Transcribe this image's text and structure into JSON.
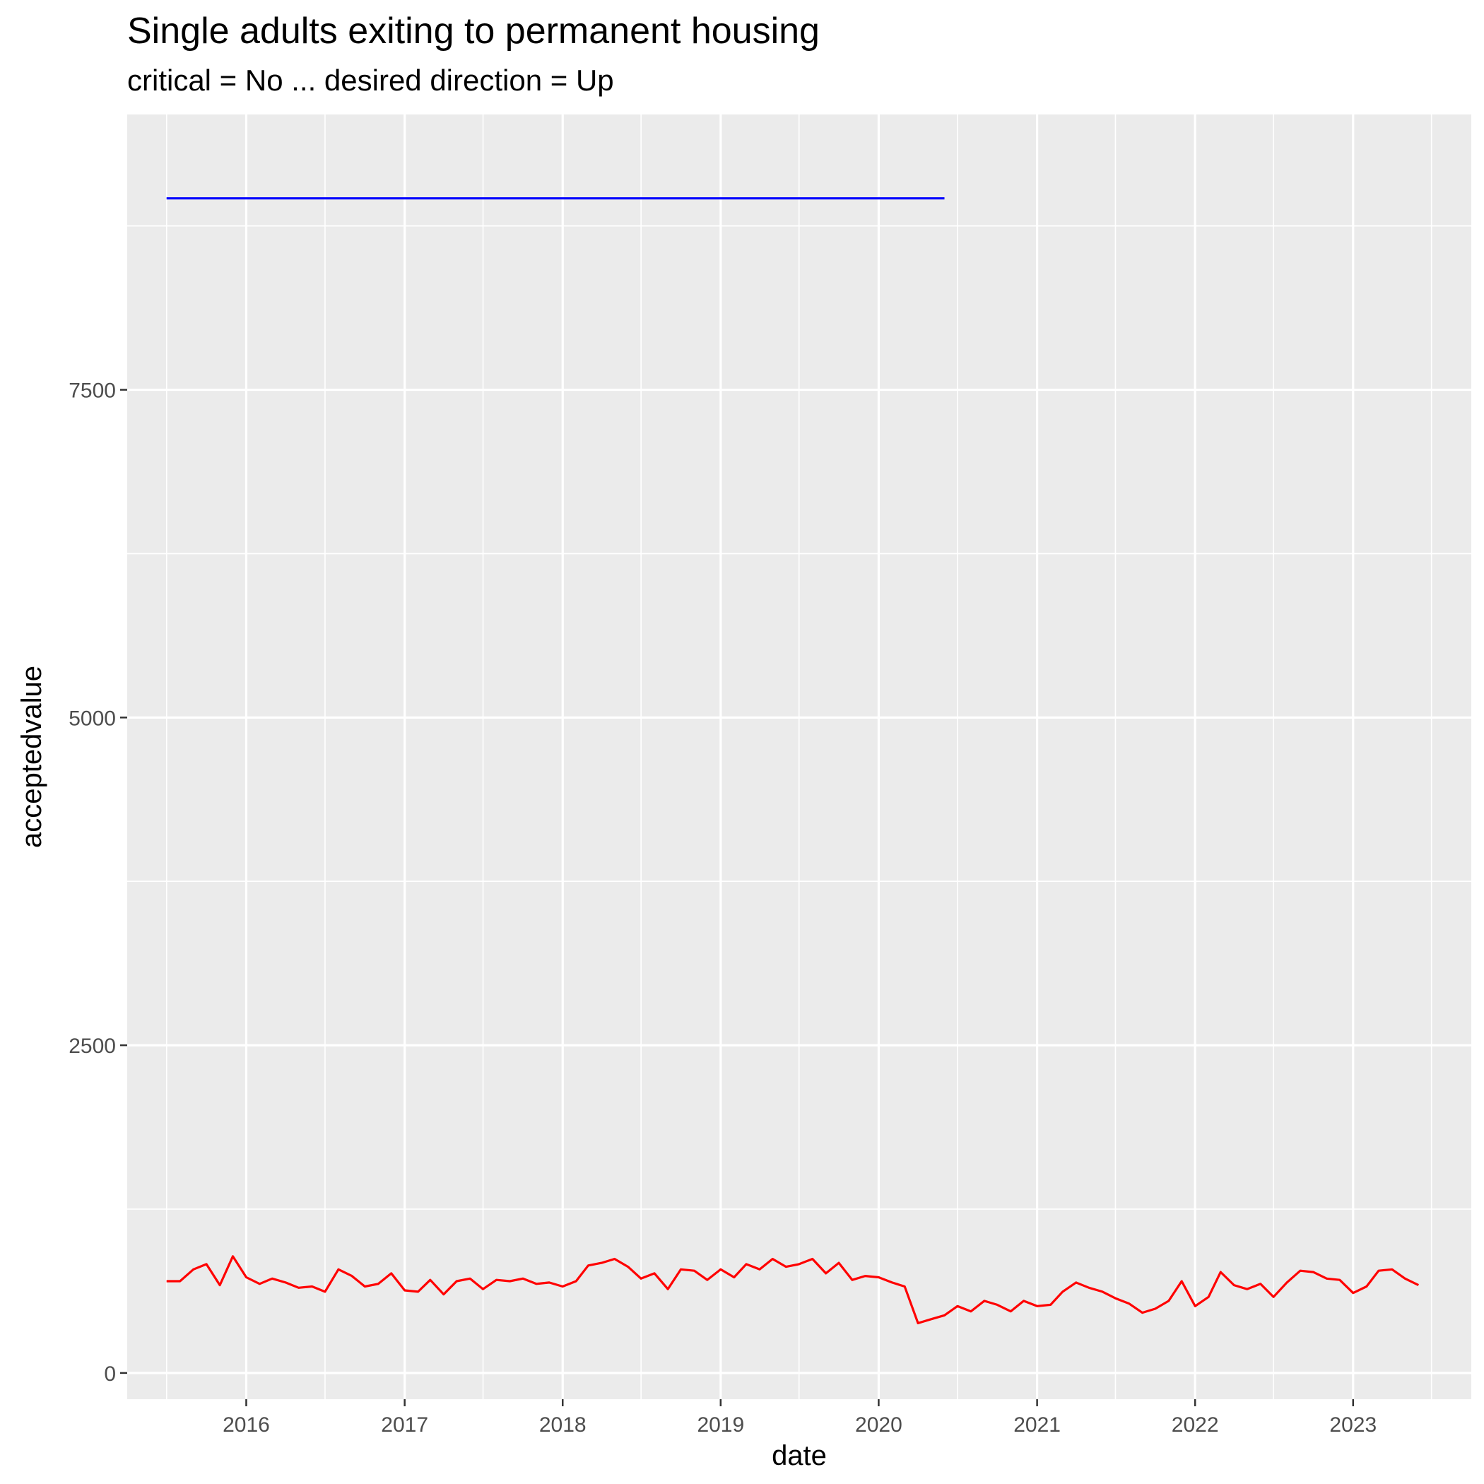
{
  "chart_data": {
    "type": "line",
    "title": "Single adults exiting to permanent housing",
    "subtitle": "critical = No ... desired direction = Up",
    "xlabel": "date",
    "ylabel": "acceptedvalue",
    "x_ticks": [
      "2016",
      "2017",
      "2018",
      "2019",
      "2020",
      "2021",
      "2022",
      "2023"
    ],
    "y_ticks": [
      0,
      2500,
      5000,
      7500
    ],
    "xlim": [
      "2015-04-01",
      "2023-10-01"
    ],
    "ylim": [
      -200,
      9600
    ],
    "grid": true,
    "background": "#ebebeb",
    "series": [
      {
        "color": "#ff0000",
        "x": [
          "2015-07",
          "2015-08",
          "2015-09",
          "2015-10",
          "2015-11",
          "2015-12",
          "2016-01",
          "2016-02",
          "2016-03",
          "2016-04",
          "2016-05",
          "2016-06",
          "2016-07",
          "2016-08",
          "2016-09",
          "2016-10",
          "2016-11",
          "2016-12",
          "2017-01",
          "2017-02",
          "2017-03",
          "2017-04",
          "2017-05",
          "2017-06",
          "2017-07",
          "2017-08",
          "2017-09",
          "2017-10",
          "2017-11",
          "2017-12",
          "2018-01",
          "2018-02",
          "2018-03",
          "2018-04",
          "2018-05",
          "2018-06",
          "2018-07",
          "2018-08",
          "2018-09",
          "2018-10",
          "2018-11",
          "2018-12",
          "2019-01",
          "2019-02",
          "2019-03",
          "2019-04",
          "2019-05",
          "2019-06",
          "2019-07",
          "2019-08",
          "2019-09",
          "2019-10",
          "2019-11",
          "2019-12",
          "2020-01",
          "2020-02",
          "2020-03",
          "2020-04",
          "2020-05",
          "2020-06",
          "2020-07",
          "2020-08",
          "2020-09",
          "2020-10",
          "2020-11",
          "2020-12",
          "2021-01",
          "2021-02",
          "2021-03",
          "2021-04",
          "2021-05",
          "2021-06",
          "2021-07",
          "2021-08",
          "2021-09",
          "2021-10",
          "2021-11",
          "2021-12",
          "2022-01",
          "2022-02",
          "2022-03",
          "2022-04",
          "2022-05",
          "2022-06",
          "2022-07",
          "2022-08",
          "2022-09",
          "2022-10",
          "2022-11",
          "2022-12",
          "2023-01",
          "2023-02",
          "2023-03",
          "2023-04",
          "2023-05",
          "2023-06"
        ],
        "values": [
          700,
          700,
          790,
          830,
          670,
          890,
          730,
          680,
          720,
          690,
          650,
          660,
          620,
          790,
          740,
          660,
          680,
          760,
          630,
          620,
          710,
          600,
          700,
          720,
          640,
          710,
          700,
          720,
          680,
          690,
          660,
          700,
          820,
          840,
          870,
          810,
          720,
          760,
          640,
          790,
          780,
          710,
          790,
          730,
          830,
          790,
          870,
          810,
          830,
          870,
          760,
          840,
          710,
          740,
          730,
          690,
          660,
          380,
          410,
          440,
          510,
          470,
          550,
          520,
          470,
          550,
          510,
          520,
          620,
          690,
          650,
          620,
          570,
          530,
          460,
          490,
          550,
          700,
          510,
          580,
          770,
          670,
          640,
          680,
          580,
          690,
          780,
          770,
          720,
          710,
          610,
          660,
          780,
          790,
          720,
          670
        ]
      },
      {
        "color": "#0000ff",
        "x": [
          "2015-07",
          "2020-06"
        ],
        "values": [
          8960,
          8960
        ]
      }
    ]
  }
}
